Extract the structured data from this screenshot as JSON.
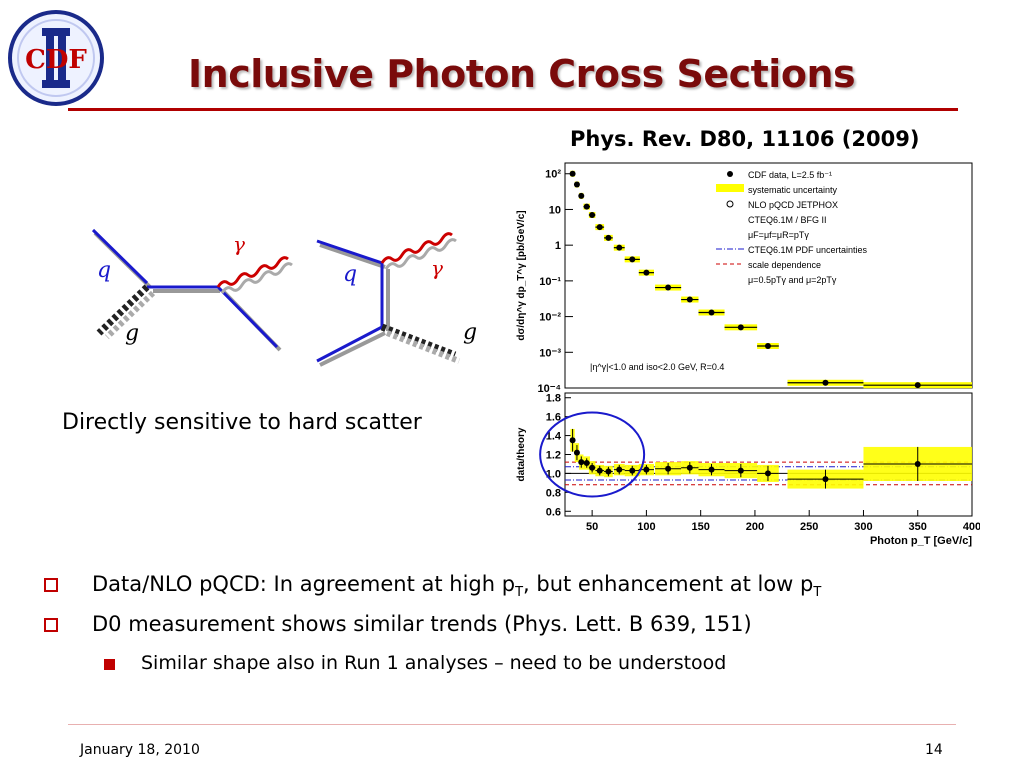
{
  "slide": {
    "title": "Inclusive Photon Cross Sections",
    "reference": "Phys. Rev. D80, 11106 (2009)",
    "logo_text": "CDF",
    "side_text": "Directly sensitive to hard scatter",
    "date": "January 18, 2010",
    "page": "14",
    "bullets": [
      {
        "pre": "Data/NLO pQCD: In agreement at high p",
        "sub1": "T",
        "mid": ", but enhancement at low p",
        "sub2": "T"
      },
      {
        "text": "D0 measurement shows similar trends (Phys. Lett. B 639, 151)"
      }
    ],
    "sub_bullets": [
      "Similar shape also in Run 1 analyses – need to be understood"
    ]
  },
  "feynman": {
    "labels": {
      "q": "q",
      "g": "g",
      "gamma": "γ"
    }
  },
  "colors": {
    "title": "#7a0b0b",
    "accent": "#b00000",
    "band": "#ffff00",
    "quark": "#1a1acc",
    "photon": "#cc0000"
  },
  "chart_data": [
    {
      "type": "scatter",
      "panel": "top",
      "ylabel": "dσ/dη^γ dp_T^γ [pb/GeV/c]",
      "yscale": "log",
      "ylim": [
        0.0001,
        200
      ],
      "xlim": [
        25,
        400
      ],
      "y_tick_labels": [
        "10²",
        "10",
        "1",
        "10⁻¹",
        "10⁻²",
        "10⁻³",
        "10⁻⁴"
      ],
      "legend_position": "top-right",
      "legend": [
        "CDF data, L=2.5 fb⁻¹",
        "systematic uncertainty",
        "NLO pQCD JETPHOX",
        "CTEQ6.1M / BFG II",
        "μF=μf=μR=pTγ",
        "CTEQ6.1M PDF uncertainties",
        "scale dependence",
        "μ=0.5pTγ and μ=2pTγ"
      ],
      "annotation": "|η^γ|<1.0 and iso<2.0 GeV, R=0.4",
      "series": [
        {
          "name": "CDF data, L=2.5 fb⁻¹",
          "x": [
            32,
            36,
            40,
            45,
            50,
            57,
            65,
            75,
            87,
            100,
            120,
            140,
            160,
            187,
            212,
            265,
            350
          ],
          "xerr": [
            2,
            2,
            2,
            3,
            3,
            4,
            4,
            5,
            7,
            7,
            12,
            8,
            12,
            15,
            10,
            35,
            50
          ],
          "y": [
            100,
            50,
            24,
            12,
            7,
            3.2,
            1.6,
            0.85,
            0.4,
            0.17,
            0.065,
            0.03,
            0.013,
            0.005,
            0.0015,
            0.00014,
            0.00012
          ]
        }
      ]
    },
    {
      "type": "scatter",
      "panel": "bottom",
      "ylabel": "data/theory",
      "xlabel": "Photon p_T [GeV/c]",
      "ylim": [
        0.55,
        1.85
      ],
      "xlim": [
        25,
        400
      ],
      "x_ticks": [
        50,
        100,
        150,
        200,
        250,
        300,
        350,
        400
      ],
      "y_ticks": [
        0.6,
        0.8,
        1.0,
        1.2,
        1.4,
        1.6,
        1.8
      ],
      "series": [
        {
          "name": "data/theory",
          "x": [
            32,
            36,
            40,
            45,
            50,
            57,
            65,
            75,
            87,
            100,
            120,
            140,
            160,
            187,
            212,
            265,
            350
          ],
          "y": [
            1.35,
            1.22,
            1.12,
            1.11,
            1.06,
            1.03,
            1.02,
            1.04,
            1.03,
            1.04,
            1.05,
            1.06,
            1.04,
            1.03,
            1.0,
            0.94,
            1.1
          ],
          "err": [
            0.12,
            0.08,
            0.06,
            0.05,
            0.05,
            0.05,
            0.05,
            0.05,
            0.05,
            0.05,
            0.06,
            0.06,
            0.06,
            0.07,
            0.08,
            0.1,
            0.18
          ],
          "band": [
            0.12,
            0.1,
            0.08,
            0.07,
            0.07,
            0.06,
            0.06,
            0.06,
            0.06,
            0.06,
            0.07,
            0.07,
            0.07,
            0.08,
            0.09,
            0.1,
            0.18
          ]
        }
      ]
    }
  ]
}
